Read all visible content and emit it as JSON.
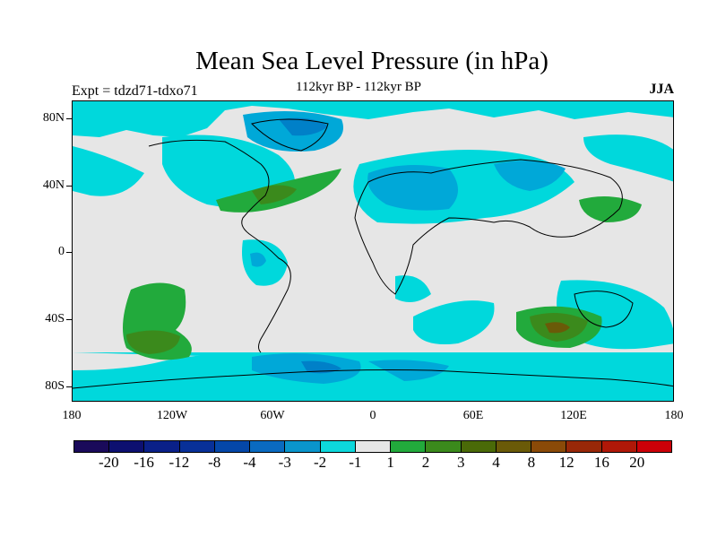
{
  "title": "Mean Sea Level Pressure (in hPa)",
  "left_label": "Expt = tdzd71-tdxo71",
  "center_label": "112kyr BP - 112kyr BP",
  "right_label": "JJA",
  "lat_labels": [
    "80N",
    "40N",
    "0",
    "40S",
    "80S"
  ],
  "lon_labels": [
    "180",
    "120W",
    "60W",
    "0",
    "60E",
    "120E",
    "180"
  ],
  "colorbar": {
    "colors": [
      "#1a0a5a",
      "#0d1070",
      "#0a2088",
      "#083098",
      "#0547a8",
      "#0a6ac0",
      "#0a95cc",
      "#0dd8dc",
      "#e6e6e6",
      "#22aa3c",
      "#3b8a1c",
      "#4a6a08",
      "#6a5a08",
      "#8a4a08",
      "#982808",
      "#b01808",
      "#cc0008"
    ],
    "labels": [
      "-20",
      "-16",
      "-12",
      "-8",
      "-4",
      "-3",
      "-2",
      "-1",
      "1",
      "2",
      "3",
      "4",
      "8",
      "12",
      "16",
      "20"
    ]
  },
  "map_colors": {
    "background": "#e6e6e6",
    "cyan": "#00d8dc",
    "blue1": "#00a8d8",
    "blue2": "#0080c8",
    "green": "#22aa3c",
    "green2": "#3b8a1c",
    "brown": "#6a5a08",
    "coast": "#000000"
  }
}
